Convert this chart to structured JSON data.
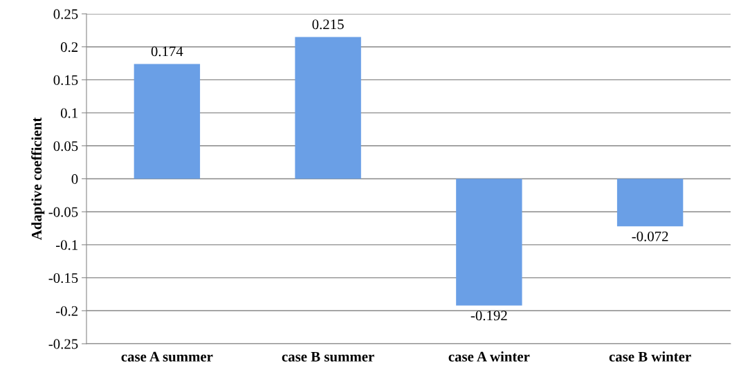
{
  "chart_data": {
    "type": "bar",
    "categories": [
      "case A summer",
      "case B summer",
      "case A winter",
      "case B winter"
    ],
    "values": [
      0.174,
      0.215,
      -0.192,
      -0.072
    ],
    "color": "#6a9fe6",
    "ylabel": "Adaptive coefficient",
    "ylim": [
      -0.25,
      0.25
    ],
    "yticks": [
      -0.25,
      -0.2,
      -0.15,
      -0.1,
      -0.05,
      0,
      0.05,
      0.1,
      0.15,
      0.2,
      0.25
    ],
    "grid": "y",
    "data_labels": true
  }
}
